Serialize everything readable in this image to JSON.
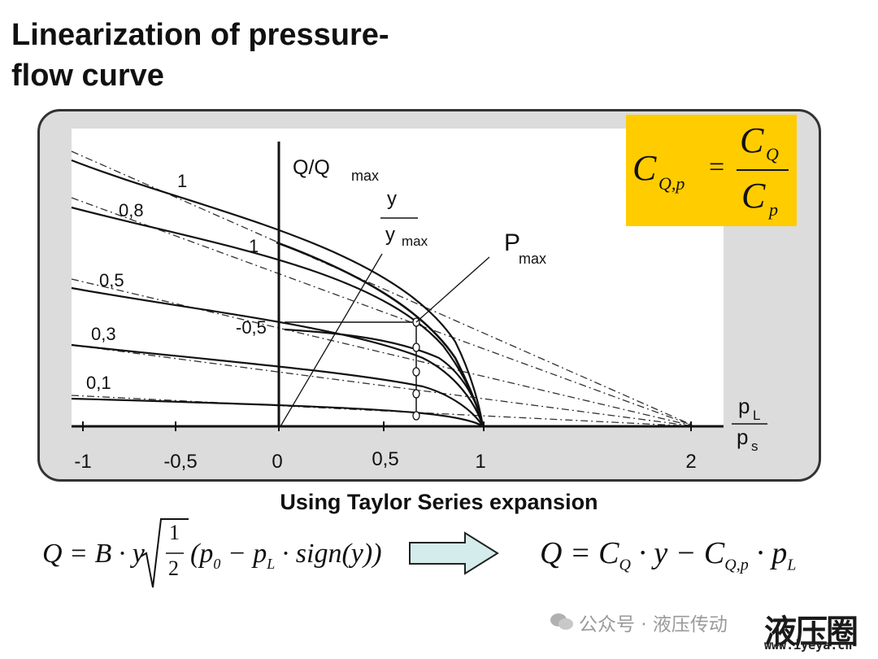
{
  "slide": {
    "title": "Linearization of pressure-\nflow curve",
    "caption": "Using Taylor Series expansion"
  },
  "colors": {
    "panel_bg": "#dcdcdc",
    "plot_bg": "#ffffff",
    "formula_box": "#ffcc00",
    "arrow_fill": "#d4ecec"
  },
  "diagram": {
    "y_axis_label": "Q/Q",
    "y_axis_sub": "max",
    "valve_label_num": "y",
    "valve_label_den": "y",
    "valve_label_den_sub": "max",
    "pmax_label": "P",
    "pmax_sub": "max",
    "x_axis_num": "p",
    "x_axis_num_sub": "L",
    "x_axis_den": "p",
    "x_axis_den_sub": "s",
    "x_ticks": [
      "-1",
      "-0,5",
      "0",
      "0,5",
      "1",
      "2"
    ],
    "curve_labels_left": [
      "1",
      "0,8",
      "0,5",
      "0,3",
      "0,1"
    ],
    "curve_labels_right": [
      "1",
      "-0,5"
    ]
  },
  "formula_box": {
    "lhs": "C",
    "lhs_sub": "Q,p",
    "equals": "=",
    "num": "C",
    "num_sub": "Q",
    "den": "C",
    "den_sub": "p"
  },
  "equation_left": {
    "prefix": "Q = B · y",
    "frac_num": "1",
    "frac_den": "2",
    "paren": "(p",
    "p0_sub": "0",
    "minus": " − p",
    "pL_sub": "L",
    "sign": " · sign(y))"
  },
  "equation_right": {
    "q": "Q = C",
    "cq_sub": "Q",
    "mid": " · y − C",
    "cqp_sub": "Q,p",
    "tail": " · p",
    "pl_sub": "L"
  },
  "watermark": {
    "text": "公众号 · 液压传动",
    "logo": "液压圈",
    "site": "www.iyeya.cn"
  }
}
